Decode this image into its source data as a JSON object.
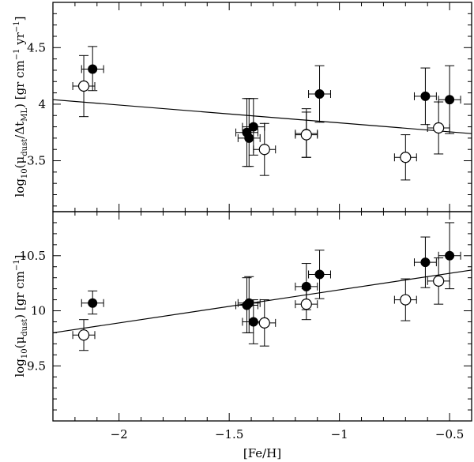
{
  "chart_data": [
    {
      "type": "scatter",
      "panel": "top",
      "ylabel_main": "log",
      "ylabel_sub": "10",
      "ylabel_rest": "(μ",
      "ylabel_dust": "dust",
      "ylabel_slash": "/Δt",
      "ylabel_ml": "ML",
      "ylabel_units": ") [gr cm",
      "ylabel_exp1": "−1",
      "ylabel_yr": " yr",
      "ylabel_exp2": "−1",
      "ylabel_close": "]",
      "ylim": [
        3.05,
        4.9
      ],
      "xlim": [
        -2.3,
        -0.4
      ],
      "yticks_labeled": [
        3.5,
        4,
        4.5
      ],
      "ytick_labels": [
        "3.5",
        "4",
        "4.5"
      ],
      "series": [
        {
          "name": "filled",
          "marker": "filled-circle",
          "x": [
            -2.12,
            -1.42,
            -1.41,
            -1.39,
            -1.15,
            -1.09,
            -0.61,
            -0.5
          ],
          "y": [
            4.31,
            3.75,
            3.7,
            3.8,
            3.74,
            4.09,
            4.07,
            4.04
          ],
          "xerr": [
            0.05,
            0.05,
            0.05,
            0.05,
            0.05,
            0.05,
            0.05,
            0.05
          ],
          "yerr_lo": [
            0.19,
            0.3,
            0.25,
            0.25,
            0.21,
            0.25,
            0.25,
            0.3
          ],
          "yerr_hi": [
            0.2,
            0.3,
            0.35,
            0.25,
            0.22,
            0.25,
            0.25,
            0.3
          ]
        },
        {
          "name": "open",
          "marker": "open-circle",
          "x": [
            -2.16,
            -1.34,
            -1.15,
            -0.7,
            -0.55
          ],
          "y": [
            4.16,
            3.6,
            3.73,
            3.53,
            3.79
          ],
          "xerr": [
            0.05,
            0.05,
            0.05,
            0.05,
            0.05
          ],
          "yerr_lo": [
            0.27,
            0.23,
            0.2,
            0.2,
            0.23
          ],
          "yerr_hi": [
            0.27,
            0.23,
            0.2,
            0.2,
            0.23
          ]
        }
      ],
      "fit_line": {
        "x": [
          -2.3,
          -0.4
        ],
        "y": [
          4.04,
          3.74
        ]
      }
    },
    {
      "type": "scatter",
      "panel": "bottom",
      "ylabel_main": "log",
      "ylabel_sub": "10",
      "ylabel_rest": "(μ",
      "ylabel_dust": "dust",
      "ylabel_units": ") [gr cm",
      "ylabel_exp1": "−1",
      "ylabel_close": "]",
      "xlabel": "[Fe/H]",
      "ylim": [
        9.0,
        10.9
      ],
      "xlim": [
        -2.3,
        -0.4
      ],
      "yticks_labeled": [
        9.5,
        10,
        10.5
      ],
      "ytick_labels": [
        "9.5",
        "10",
        "10.5"
      ],
      "xticks_labeled": [
        -2,
        -1.5,
        -1,
        -0.5
      ],
      "xtick_labels": [
        "−2",
        "−1.5",
        "−1",
        "−0.5"
      ],
      "series": [
        {
          "name": "filled",
          "marker": "filled-circle",
          "x": [
            -2.12,
            -1.42,
            -1.41,
            -1.39,
            -1.15,
            -1.09,
            -0.61,
            -0.5
          ],
          "y": [
            10.07,
            10.05,
            10.07,
            9.9,
            10.22,
            10.33,
            10.44,
            10.5
          ],
          "xerr": [
            0.05,
            0.05,
            0.05,
            0.05,
            0.05,
            0.05,
            0.05,
            0.05
          ],
          "yerr_lo": [
            0.1,
            0.25,
            0.27,
            0.2,
            0.21,
            0.22,
            0.23,
            0.3
          ],
          "yerr_hi": [
            0.11,
            0.25,
            0.24,
            0.2,
            0.21,
            0.22,
            0.23,
            0.3
          ]
        },
        {
          "name": "open",
          "marker": "open-circle",
          "x": [
            -2.16,
            -1.34,
            -1.15,
            -0.7,
            -0.55
          ],
          "y": [
            9.78,
            9.89,
            10.06,
            10.1,
            10.27
          ],
          "xerr": [
            0.05,
            0.05,
            0.05,
            0.05,
            0.05
          ],
          "yerr_lo": [
            0.14,
            0.21,
            0.14,
            0.19,
            0.21
          ],
          "yerr_hi": [
            0.14,
            0.21,
            0.14,
            0.19,
            0.21
          ]
        }
      ],
      "fit_line": {
        "x": [
          -2.3,
          -0.4
        ],
        "y": [
          9.8,
          10.37
        ]
      }
    }
  ]
}
